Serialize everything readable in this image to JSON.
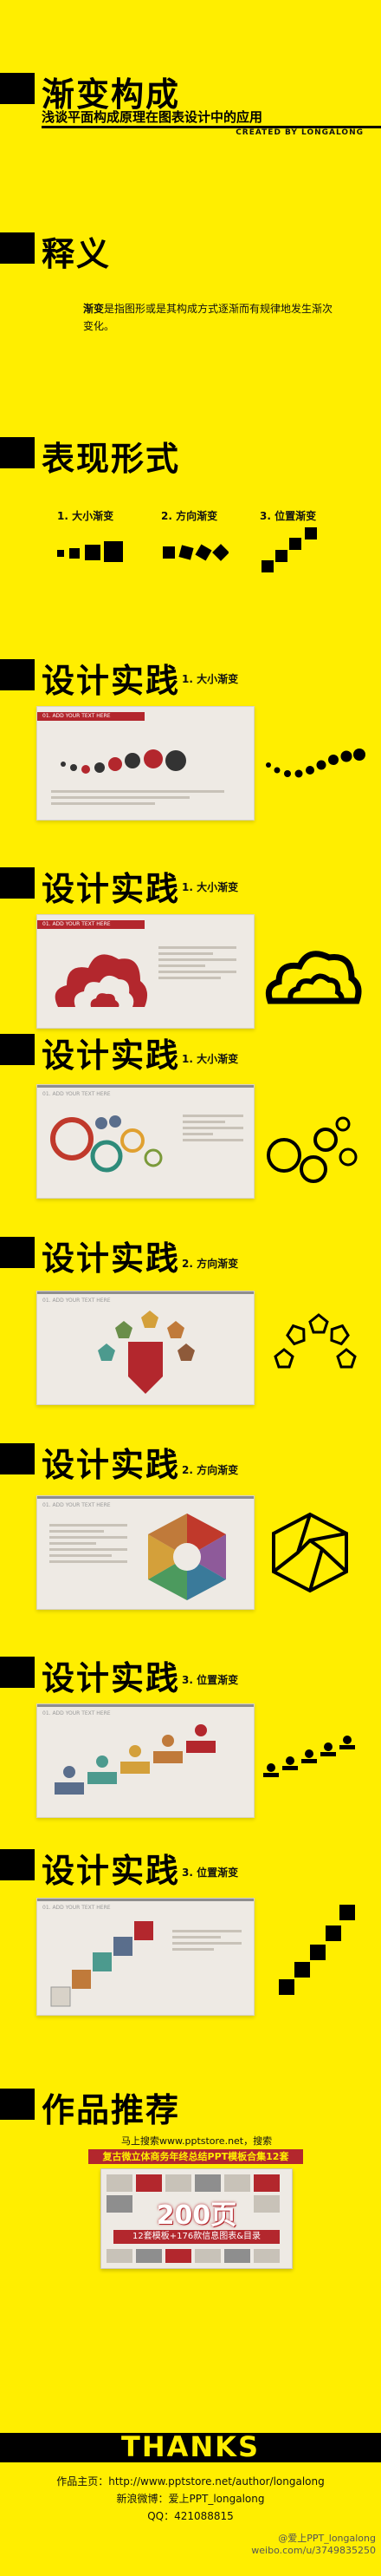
{
  "title": {
    "main": "渐变构成",
    "subtitle": "浅谈平面构成原理在图表设计中的应用",
    "credit": "CREATED BY LONGALONG"
  },
  "definition": {
    "heading": "释义",
    "term": "渐变",
    "text_rest": "是指图形或是其构成方式逐渐而有规律地发生渐次变化。"
  },
  "forms": {
    "heading": "表现形式",
    "items": [
      {
        "label": "1. 大小渐变"
      },
      {
        "label": "2. 方向渐变"
      },
      {
        "label": "3. 位置渐变"
      }
    ]
  },
  "practice": [
    {
      "heading": "设计实践",
      "tag": "1. 大小渐变",
      "slide_title": "01. ADD YOUR TEXT HERE"
    },
    {
      "heading": "设计实践",
      "tag": "1. 大小渐变",
      "slide_title": "01. ADD YOUR TEXT HERE"
    },
    {
      "heading": "设计实践",
      "tag": "1. 大小渐变",
      "slide_title": "01. ADD YOUR TEXT HERE"
    },
    {
      "heading": "设计实践",
      "tag": "2. 方向渐变",
      "slide_title": "01. ADD YOUR TEXT HERE"
    },
    {
      "heading": "设计实践",
      "tag": "2. 方向渐变",
      "slide_title": "01. ADD YOUR TEXT HERE"
    },
    {
      "heading": "设计实践",
      "tag": "3. 位置渐变",
      "slide_title": "01. ADD YOUR TEXT HERE"
    },
    {
      "heading": "设计实践",
      "tag": "3. 位置渐变",
      "slide_title": "01. ADD YOUR TEXT HERE"
    }
  ],
  "recommend": {
    "heading": "作品推荐",
    "line1": "马上搜索www.pptstore.net，搜索",
    "banner": "复古微立体商务年终总结PPT模板合集12套",
    "big_number": "200页",
    "promo_sub": "12套模板+176款信息图表&目录"
  },
  "footer": {
    "thanks": "THANKS",
    "homepage": "作品主页：http://www.pptstore.net/author/longalong",
    "weibo": "新浪微博：爱上PPT_longalong",
    "qq": "QQ：421088815",
    "watermark1": "@爱上PPT_longalong",
    "watermark2": "weibo.com/u/3749835250"
  }
}
